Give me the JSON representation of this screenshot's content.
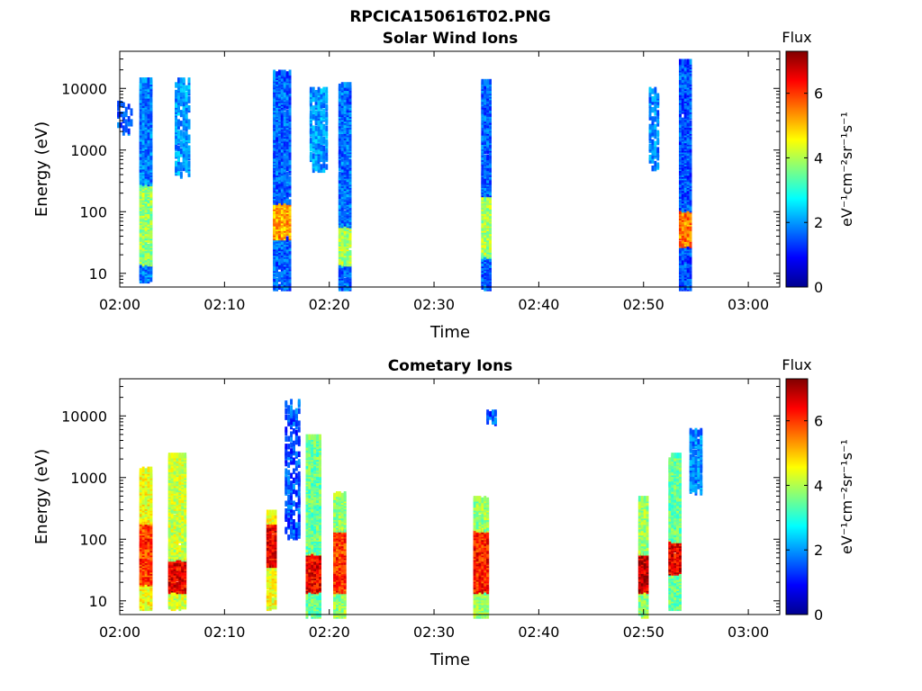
{
  "figure_title": "RPCICA150616T02.PNG",
  "chart_data": [
    {
      "type": "heatmap",
      "title": "Solar Wind Ions",
      "xlabel": "Time",
      "ylabel": "Energy (eV)",
      "x_ticks": [
        "02:00",
        "02:10",
        "02:20",
        "02:30",
        "02:40",
        "02:50",
        "03:00"
      ],
      "xlim": [
        "02:00",
        "03:03"
      ],
      "y_scale": "log",
      "y_ticks": [
        "10",
        "100",
        "1000",
        "10000"
      ],
      "ylim": [
        6,
        40000
      ],
      "colorbar": {
        "title": "Flux",
        "label": "eV⁻¹cm⁻²sr⁻¹s⁻¹",
        "range": [
          0,
          7.3
        ],
        "ticks": [
          "0",
          "2",
          "4",
          "6"
        ],
        "colormap": "jet"
      },
      "bursts": [
        {
          "time": "02:00.5",
          "e_lo": 2000,
          "e_hi": 6000,
          "flux": 1.5,
          "density": 0.3
        },
        {
          "time": "02:02.5",
          "e_lo": 8,
          "e_hi": 15000,
          "flux": 1.8,
          "density": 0.85,
          "core": {
            "e_lo": 15,
            "e_hi": 300,
            "flux": 3.8
          }
        },
        {
          "time": "02:06",
          "e_lo": 400,
          "e_hi": 15000,
          "flux": 2.0,
          "density": 0.5
        },
        {
          "time": "02:15.5",
          "e_lo": 6,
          "e_hi": 20000,
          "flux": 1.6,
          "density": 0.8,
          "core": {
            "e_lo": 40,
            "e_hi": 150,
            "flux": 5.2
          }
        },
        {
          "time": "02:19",
          "e_lo": 500,
          "e_hi": 10000,
          "flux": 2.0,
          "density": 0.5
        },
        {
          "time": "02:21.5",
          "e_lo": 6,
          "e_hi": 12000,
          "flux": 1.7,
          "density": 0.85,
          "core": {
            "e_lo": 15,
            "e_hi": 60,
            "flux": 4.0
          }
        },
        {
          "time": "02:35",
          "e_lo": 6,
          "e_hi": 14000,
          "flux": 1.6,
          "density": 0.85,
          "core": {
            "e_lo": 20,
            "e_hi": 200,
            "flux": 4.0
          }
        },
        {
          "time": "02:51",
          "e_lo": 500,
          "e_hi": 10000,
          "flux": 1.9,
          "density": 0.4
        },
        {
          "time": "02:54",
          "e_lo": 6,
          "e_hi": 30000,
          "flux": 1.5,
          "density": 0.85,
          "core": {
            "e_lo": 30,
            "e_hi": 110,
            "flux": 5.5
          }
        }
      ]
    },
    {
      "type": "heatmap",
      "title": "Cometary Ions",
      "xlabel": "Time",
      "ylabel": "Energy (eV)",
      "x_ticks": [
        "02:00",
        "02:10",
        "02:20",
        "02:30",
        "02:40",
        "02:50",
        "03:00"
      ],
      "xlim": [
        "02:00",
        "03:03"
      ],
      "y_scale": "log",
      "y_ticks": [
        "10",
        "100",
        "1000",
        "10000"
      ],
      "ylim": [
        6,
        40000
      ],
      "colorbar": {
        "title": "Flux",
        "label": "eV⁻¹cm⁻²sr⁻¹s⁻¹",
        "range": [
          0,
          7.3
        ],
        "ticks": [
          "0",
          "2",
          "4",
          "6"
        ],
        "colormap": "jet"
      },
      "bursts": [
        {
          "time": "02:02.5",
          "e_lo": 8,
          "e_hi": 1500,
          "flux": 4.5,
          "density": 0.85,
          "core": {
            "e_lo": 20,
            "e_hi": 200,
            "flux": 6.0
          }
        },
        {
          "time": "02:05.5",
          "e_lo": 8,
          "e_hi": 2500,
          "flux": 4.2,
          "density": 0.85,
          "core": {
            "e_lo": 15,
            "e_hi": 50,
            "flux": 6.5
          }
        },
        {
          "time": "02:14.5",
          "e_lo": 8,
          "e_hi": 300,
          "flux": 4.5,
          "density": 0.75,
          "core": {
            "e_lo": 40,
            "e_hi": 200,
            "flux": 6.5
          }
        },
        {
          "time": "02:16.5",
          "e_lo": 100,
          "e_hi": 18000,
          "flux": 1.5,
          "density": 0.35
        },
        {
          "time": "02:18.5",
          "e_lo": 6,
          "e_hi": 5000,
          "flux": 3.5,
          "density": 0.85,
          "core": {
            "e_lo": 15,
            "e_hi": 60,
            "flux": 6.5
          }
        },
        {
          "time": "02:21",
          "e_lo": 6,
          "e_hi": 600,
          "flux": 3.8,
          "density": 0.85,
          "core": {
            "e_lo": 15,
            "e_hi": 150,
            "flux": 6.0
          }
        },
        {
          "time": "02:34.5",
          "e_lo": 6,
          "e_hi": 500,
          "flux": 3.8,
          "density": 0.85,
          "core": {
            "e_lo": 15,
            "e_hi": 150,
            "flux": 6.2
          }
        },
        {
          "time": "02:35.5",
          "e_lo": 8000,
          "e_hi": 12000,
          "flux": 1.5,
          "density": 0.6
        },
        {
          "time": "02:50",
          "e_lo": 6,
          "e_hi": 500,
          "flux": 3.8,
          "density": 0.85,
          "core": {
            "e_lo": 15,
            "e_hi": 60,
            "flux": 6.8
          }
        },
        {
          "time": "02:53",
          "e_lo": 8,
          "e_hi": 2500,
          "flux": 3.5,
          "density": 0.85,
          "core": {
            "e_lo": 30,
            "e_hi": 100,
            "flux": 6.5
          }
        },
        {
          "time": "02:55",
          "e_lo": 600,
          "e_hi": 6000,
          "flux": 1.9,
          "density": 0.6
        }
      ]
    }
  ]
}
